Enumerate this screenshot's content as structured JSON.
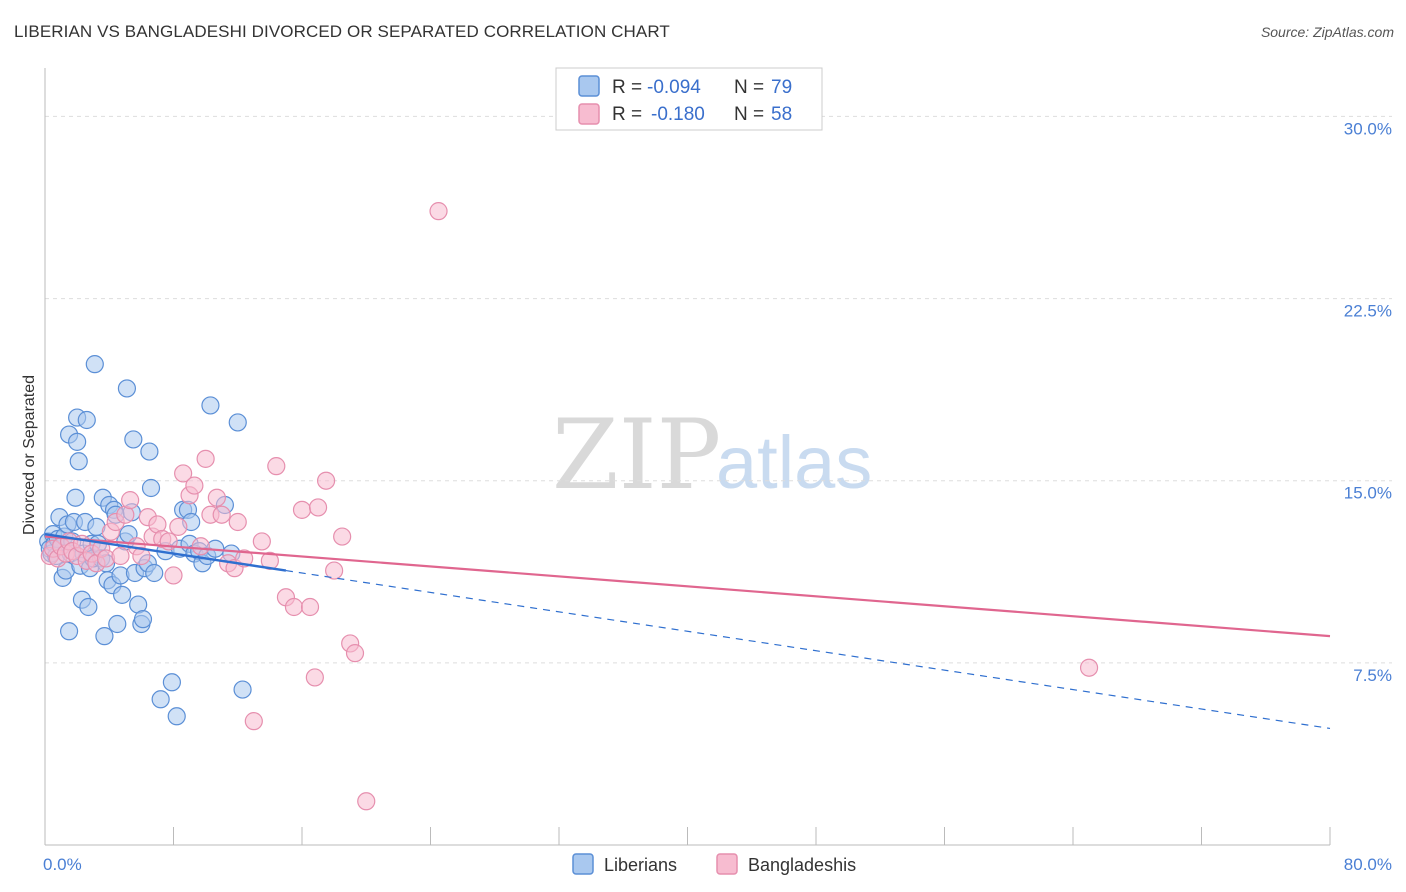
{
  "title": "LIBERIAN VS BANGLADESHI DIVORCED OR SEPARATED CORRELATION CHART",
  "source": "Source: ZipAtlas.com",
  "watermark": {
    "zip": "ZIP",
    "atlas": "atlas"
  },
  "colors": {
    "liberians_fill": "#a9c8ef",
    "liberians_stroke": "#5b8fd6",
    "liberians_line": "#2f6fcf",
    "bangladeshis_fill": "#f7bcd0",
    "bangladeshis_stroke": "#e68fae",
    "bangladeshis_line": "#e0668f",
    "axis_label": "#4a7fd4",
    "grid": "#dddddd"
  },
  "legend": {
    "rows": [
      {
        "r_label": "R = ",
        "r_value": "-0.094",
        "n_label": "N = ",
        "n_value": "79"
      },
      {
        "r_label": "R = ",
        "r_value": "-0.180",
        "n_label": "N = ",
        "n_value": "58"
      }
    ]
  },
  "chart_data": {
    "type": "scatter",
    "title": "LIBERIAN VS BANGLADESHI DIVORCED OR SEPARATED CORRELATION CHART",
    "xlabel": "",
    "ylabel": "Divorced or Separated",
    "xlim": [
      0,
      80
    ],
    "ylim": [
      0,
      31.5
    ],
    "x_tick_labels": [
      "0.0%",
      "80.0%"
    ],
    "y_ticks": [
      7.5,
      15.0,
      22.5,
      30.0
    ],
    "y_tick_labels": [
      "7.5%",
      "15.0%",
      "22.5%",
      "30.0%"
    ],
    "grid": true,
    "series": [
      {
        "name": "Liberians",
        "r": -0.094,
        "n": 79,
        "trend_solid": {
          "x": [
            0,
            15
          ],
          "y": [
            12.8,
            11.3
          ]
        },
        "trend_dashed": {
          "x": [
            15,
            80
          ],
          "y": [
            11.3,
            4.8
          ]
        },
        "points": [
          [
            0.2,
            12.5
          ],
          [
            0.3,
            12.2
          ],
          [
            0.4,
            12.0
          ],
          [
            0.5,
            12.8
          ],
          [
            0.6,
            12.4
          ],
          [
            0.7,
            11.9
          ],
          [
            0.8,
            12.6
          ],
          [
            0.9,
            13.5
          ],
          [
            1.0,
            12.3
          ],
          [
            1.1,
            11.0
          ],
          [
            1.2,
            12.7
          ],
          [
            1.3,
            11.3
          ],
          [
            1.4,
            13.2
          ],
          [
            1.5,
            16.9
          ],
          [
            1.5,
            8.8
          ],
          [
            1.6,
            12.0
          ],
          [
            1.7,
            12.5
          ],
          [
            1.8,
            13.3
          ],
          [
            1.9,
            14.3
          ],
          [
            2.0,
            17.6
          ],
          [
            2.0,
            16.6
          ],
          [
            2.1,
            15.8
          ],
          [
            2.2,
            11.5
          ],
          [
            2.3,
            10.1
          ],
          [
            2.4,
            12.0
          ],
          [
            2.5,
            13.3
          ],
          [
            2.6,
            17.5
          ],
          [
            2.7,
            9.8
          ],
          [
            2.8,
            11.4
          ],
          [
            2.9,
            12.4
          ],
          [
            3.0,
            11.8
          ],
          [
            3.1,
            19.8
          ],
          [
            3.2,
            13.1
          ],
          [
            3.3,
            12.4
          ],
          [
            3.5,
            11.8
          ],
          [
            3.6,
            14.3
          ],
          [
            3.7,
            8.6
          ],
          [
            3.8,
            11.6
          ],
          [
            3.9,
            10.9
          ],
          [
            4.0,
            14.0
          ],
          [
            4.2,
            10.7
          ],
          [
            4.3,
            13.8
          ],
          [
            4.4,
            13.6
          ],
          [
            4.5,
            9.1
          ],
          [
            4.7,
            11.1
          ],
          [
            4.8,
            10.3
          ],
          [
            5.0,
            12.5
          ],
          [
            5.1,
            18.8
          ],
          [
            5.2,
            12.8
          ],
          [
            5.4,
            13.7
          ],
          [
            5.5,
            16.7
          ],
          [
            5.6,
            11.2
          ],
          [
            5.8,
            9.9
          ],
          [
            6.0,
            9.1
          ],
          [
            6.1,
            9.3
          ],
          [
            6.2,
            11.4
          ],
          [
            6.4,
            11.6
          ],
          [
            6.5,
            16.2
          ],
          [
            6.6,
            14.7
          ],
          [
            6.8,
            11.2
          ],
          [
            7.2,
            6.0
          ],
          [
            7.5,
            12.1
          ],
          [
            7.9,
            6.7
          ],
          [
            8.2,
            5.3
          ],
          [
            8.4,
            12.2
          ],
          [
            8.6,
            13.8
          ],
          [
            8.9,
            13.8
          ],
          [
            9.0,
            12.4
          ],
          [
            9.1,
            13.3
          ],
          [
            9.3,
            12.0
          ],
          [
            9.6,
            12.1
          ],
          [
            9.8,
            11.6
          ],
          [
            10.1,
            11.9
          ],
          [
            10.3,
            18.1
          ],
          [
            10.6,
            12.2
          ],
          [
            11.2,
            14.0
          ],
          [
            11.6,
            12.0
          ],
          [
            12.0,
            17.4
          ],
          [
            12.3,
            6.4
          ]
        ]
      },
      {
        "name": "Bangladeshis",
        "r": -0.18,
        "n": 58,
        "trend_solid": {
          "x": [
            0,
            80
          ],
          "y": [
            12.7,
            8.6
          ]
        },
        "points": [
          [
            0.3,
            11.9
          ],
          [
            0.5,
            12.2
          ],
          [
            0.8,
            11.8
          ],
          [
            1.0,
            12.3
          ],
          [
            1.3,
            12.0
          ],
          [
            1.5,
            12.5
          ],
          [
            1.7,
            12.1
          ],
          [
            2.0,
            11.9
          ],
          [
            2.3,
            12.4
          ],
          [
            2.6,
            11.7
          ],
          [
            2.9,
            12.0
          ],
          [
            3.2,
            11.6
          ],
          [
            3.5,
            12.2
          ],
          [
            3.8,
            11.8
          ],
          [
            4.1,
            12.9
          ],
          [
            4.4,
            13.3
          ],
          [
            4.7,
            11.9
          ],
          [
            5.0,
            13.6
          ],
          [
            5.3,
            14.2
          ],
          [
            5.7,
            12.3
          ],
          [
            6.0,
            11.9
          ],
          [
            6.4,
            13.5
          ],
          [
            6.7,
            12.7
          ],
          [
            7.0,
            13.2
          ],
          [
            7.3,
            12.6
          ],
          [
            7.7,
            12.5
          ],
          [
            8.0,
            11.1
          ],
          [
            8.3,
            13.1
          ],
          [
            8.6,
            15.3
          ],
          [
            9.0,
            14.4
          ],
          [
            9.3,
            14.8
          ],
          [
            9.7,
            12.3
          ],
          [
            10.0,
            15.9
          ],
          [
            10.3,
            13.6
          ],
          [
            10.7,
            14.3
          ],
          [
            11.0,
            13.6
          ],
          [
            11.4,
            11.6
          ],
          [
            11.8,
            11.4
          ],
          [
            12.0,
            13.3
          ],
          [
            12.4,
            11.8
          ],
          [
            13.0,
            5.1
          ],
          [
            13.5,
            12.5
          ],
          [
            14.0,
            11.7
          ],
          [
            14.4,
            15.6
          ],
          [
            15.0,
            10.2
          ],
          [
            15.5,
            9.8
          ],
          [
            16.0,
            13.8
          ],
          [
            16.5,
            9.8
          ],
          [
            16.8,
            6.9
          ],
          [
            17.0,
            13.9
          ],
          [
            17.5,
            15.0
          ],
          [
            18.0,
            11.3
          ],
          [
            18.5,
            12.7
          ],
          [
            19.0,
            8.3
          ],
          [
            19.3,
            7.9
          ],
          [
            20.0,
            1.8
          ],
          [
            24.5,
            26.1
          ],
          [
            65.0,
            7.3
          ]
        ]
      }
    ],
    "legend_entries": [
      "Liberians",
      "Bangladeshis"
    ]
  }
}
